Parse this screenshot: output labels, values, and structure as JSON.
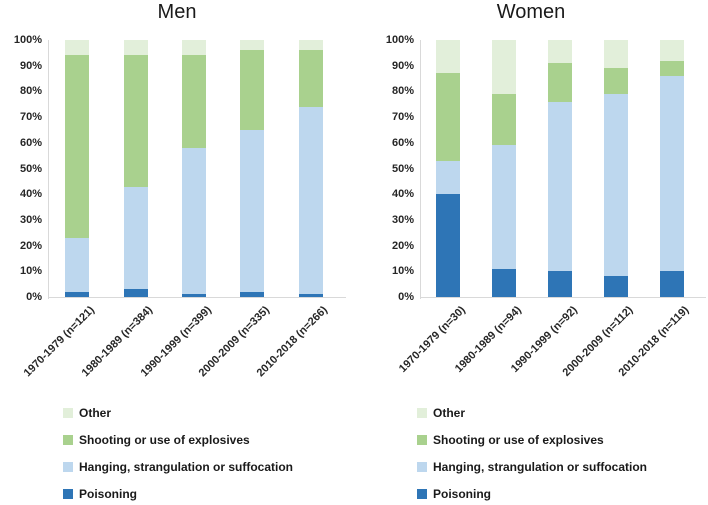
{
  "chart_data": [
    {
      "type": "bar",
      "stacked": true,
      "percent": true,
      "title": "Men",
      "categories": [
        "1970-1979 (n=121)",
        "1980-1989 (n=384)",
        "1990-1999 (n=399)",
        "2000-2009 (n=335)",
        "2010-2018 (n=266)"
      ],
      "series": [
        {
          "name": "Poisoning",
          "color": "#2e75b6",
          "values": [
            2,
            3,
            1,
            2,
            1
          ]
        },
        {
          "name": "Hanging, strangulation or suffocation",
          "color": "#bdd7ee",
          "values": [
            21,
            40,
            57,
            63,
            73
          ]
        },
        {
          "name": "Shooting or use of explosives",
          "color": "#a9d18e",
          "values": [
            71,
            51,
            36,
            31,
            22
          ]
        },
        {
          "name": "Other",
          "color": "#e2efda",
          "values": [
            6,
            6,
            6,
            4,
            4
          ]
        }
      ],
      "ylim": [
        0,
        100
      ],
      "y_ticks": [
        "0%",
        "10%",
        "20%",
        "30%",
        "40%",
        "50%",
        "60%",
        "70%",
        "80%",
        "90%",
        "100%"
      ],
      "gridlines": false,
      "legend_position": "bottom"
    },
    {
      "type": "bar",
      "stacked": true,
      "percent": true,
      "title": "Women",
      "categories": [
        "1970-1979 (n=30)",
        "1980-1989 (n=94)",
        "1990-1999 (n=92)",
        "2000-2009 (n=112)",
        "2010-2018 (n=119)"
      ],
      "series": [
        {
          "name": "Poisoning",
          "color": "#2e75b6",
          "values": [
            40,
            11,
            10,
            8,
            10
          ]
        },
        {
          "name": "Hanging, strangulation or suffocation",
          "color": "#bdd7ee",
          "values": [
            13,
            48,
            66,
            71,
            76
          ]
        },
        {
          "name": "Shooting or use of explosives",
          "color": "#a9d18e",
          "values": [
            34,
            20,
            15,
            10,
            6
          ]
        },
        {
          "name": "Other",
          "color": "#e2efda",
          "values": [
            13,
            21,
            9,
            11,
            8
          ]
        }
      ],
      "ylim": [
        0,
        100
      ],
      "y_ticks": [
        "0%",
        "10%",
        "20%",
        "30%",
        "40%",
        "50%",
        "60%",
        "70%",
        "80%",
        "90%",
        "100%"
      ],
      "gridlines": false,
      "legend_position": "bottom"
    }
  ],
  "colors": {
    "poisoning": "#2e75b6",
    "hanging": "#bdd7ee",
    "shooting": "#a9d18e",
    "other": "#e2efda",
    "axis_line": "#d9d9d9",
    "text": "#262626"
  }
}
